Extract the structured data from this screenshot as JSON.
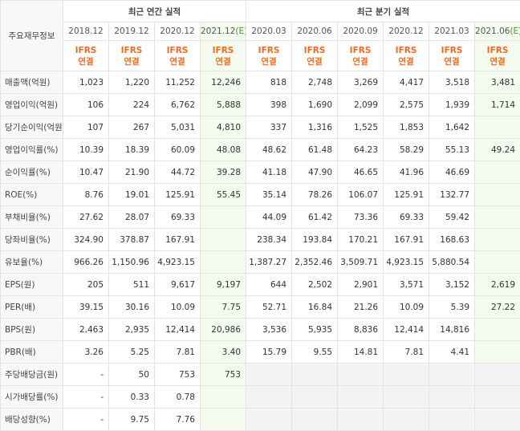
{
  "table": {
    "corner": "주요재무정보",
    "groups": [
      "최근 연간 실적",
      "최근 분기 실적"
    ],
    "columns": [
      {
        "period": "2018.12",
        "line1": "IFRS",
        "line2": "연결"
      },
      {
        "period": "2019.12",
        "line1": "IFRS",
        "line2": "연결"
      },
      {
        "period": "2020.12",
        "line1": "IFRS",
        "line2": "연결"
      },
      {
        "period": "2021.12",
        "mark": "(E)",
        "line1": "IFRS",
        "line2": "연결"
      },
      {
        "period": "2020.03",
        "line1": "IFRS",
        "line2": "연결"
      },
      {
        "period": "2020.06",
        "line1": "IFRS",
        "line2": "연결"
      },
      {
        "period": "2020.09",
        "line1": "IFRS",
        "line2": "연결"
      },
      {
        "period": "2020.12",
        "line1": "IFRS",
        "line2": "연결"
      },
      {
        "period": "2021.03",
        "line1": "IFRS",
        "line2": "연결"
      },
      {
        "period": "2021.06",
        "mark": "(E)",
        "line1": "IFRS",
        "line2": "연결"
      }
    ],
    "rows": [
      {
        "label": "매출액(억원)",
        "cells": [
          "1,023",
          "1,220",
          "11,252",
          "12,246",
          "818",
          "2,748",
          "3,269",
          "4,417",
          "3,518",
          "3,481"
        ]
      },
      {
        "label": "영업이익(억원)",
        "cells": [
          "106",
          "224",
          "6,762",
          "5,888",
          "398",
          "1,690",
          "2,099",
          "2,575",
          "1,939",
          "1,714"
        ]
      },
      {
        "label": "당기순이익(억원)",
        "cells": [
          "107",
          "267",
          "5,031",
          "4,810",
          "337",
          "1,316",
          "1,525",
          "1,853",
          "1,642",
          null
        ]
      },
      {
        "label": "영업이익률(%)",
        "cells": [
          "10.39",
          "18.39",
          "60.09",
          "48.08",
          "48.62",
          "61.48",
          "64.23",
          "58.29",
          "55.13",
          "49.24"
        ]
      },
      {
        "label": "순이익률(%)",
        "cells": [
          "10.47",
          "21.90",
          "44.72",
          "39.28",
          "41.18",
          "47.90",
          "46.65",
          "41.96",
          "46.69",
          null
        ]
      },
      {
        "label": "ROE(%)",
        "cells": [
          "8.76",
          "19.01",
          "125.91",
          "55.45",
          "35.14",
          "78.26",
          "106.07",
          "125.91",
          "132.77",
          null
        ]
      },
      {
        "label": "부채비율(%)",
        "cells": [
          "27.62",
          "28.07",
          "69.33",
          null,
          "44.09",
          "61.42",
          "73.36",
          "69.33",
          "59.42",
          null
        ]
      },
      {
        "label": "당좌비율(%)",
        "cells": [
          "324.90",
          "378.87",
          "167.91",
          null,
          "238.34",
          "193.84",
          "170.21",
          "167.91",
          "168.63",
          null
        ]
      },
      {
        "label": "유보율(%)",
        "cells": [
          "966.26",
          "1,150.96",
          "4,923.15",
          null,
          "1,387.27",
          "2,352.46",
          "3,509.71",
          "4,923.15",
          "5,880.54",
          null
        ]
      },
      {
        "label": "EPS(원)",
        "cells": [
          "205",
          "511",
          "9,617",
          "9,197",
          "644",
          "2,502",
          "2,901",
          "3,571",
          "3,152",
          "2,619"
        ]
      },
      {
        "label": "PER(배)",
        "cells": [
          "39.15",
          "30.16",
          "10.09",
          "7.75",
          "52.71",
          "16.84",
          "21.26",
          "10.09",
          "5.39",
          "27.22"
        ]
      },
      {
        "label": "BPS(원)",
        "cells": [
          "2,463",
          "2,935",
          "12,414",
          "20,986",
          "3,536",
          "5,935",
          "8,836",
          "12,414",
          "14,816",
          null
        ]
      },
      {
        "label": "PBR(배)",
        "cells": [
          "3.26",
          "5.25",
          "7.81",
          "3.40",
          "15.79",
          "9.55",
          "14.81",
          "7.81",
          "4.41",
          null
        ]
      },
      {
        "label": "주당배당금(원)",
        "cells": [
          "-",
          "50",
          "753",
          "753",
          null,
          null,
          null,
          null,
          null,
          null
        ]
      },
      {
        "label": "시가배당률(%)",
        "cells": [
          "-",
          "0.33",
          "0.78",
          null,
          null,
          null,
          null,
          null,
          null,
          null
        ]
      },
      {
        "label": "배당성향(%)",
        "cells": [
          "-",
          "9.75",
          "7.76",
          null,
          null,
          null,
          null,
          null,
          null,
          null
        ]
      }
    ]
  }
}
